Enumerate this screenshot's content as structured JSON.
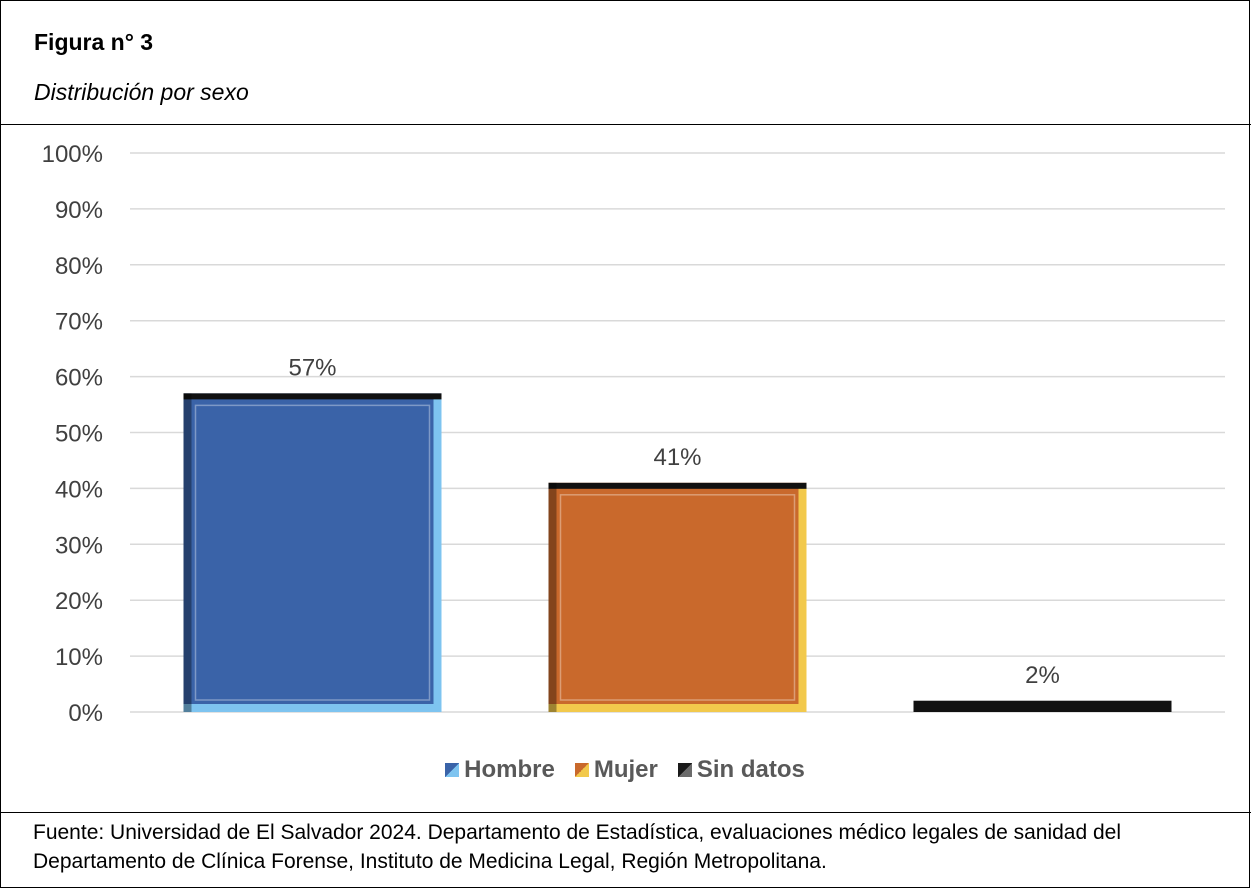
{
  "figure": {
    "title": "Figura n° 3",
    "subtitle": "Distribución por sexo",
    "source": "Fuente: Universidad de El Salvador 2024. Departamento de Estadística, evaluaciones médico legales de sanidad del Departamento de Clínica Forense, Instituto de Medicina Legal, Región Metropolitana."
  },
  "chart_data": {
    "type": "bar",
    "title": "",
    "xlabel": "",
    "ylabel": "",
    "ylim": [
      0,
      100
    ],
    "y_ticks": [
      "0%",
      "10%",
      "20%",
      "30%",
      "40%",
      "50%",
      "60%",
      "70%",
      "80%",
      "90%",
      "100%"
    ],
    "grid": true,
    "legend_position": "bottom",
    "categories": [
      "Hombre",
      "Mujer",
      "Sin datos"
    ],
    "values": [
      57,
      41,
      2
    ],
    "data_labels": [
      "57%",
      "41%",
      "2%"
    ],
    "colors": [
      "#3a63a8",
      "#c9692c",
      "#1a1a1a"
    ]
  }
}
